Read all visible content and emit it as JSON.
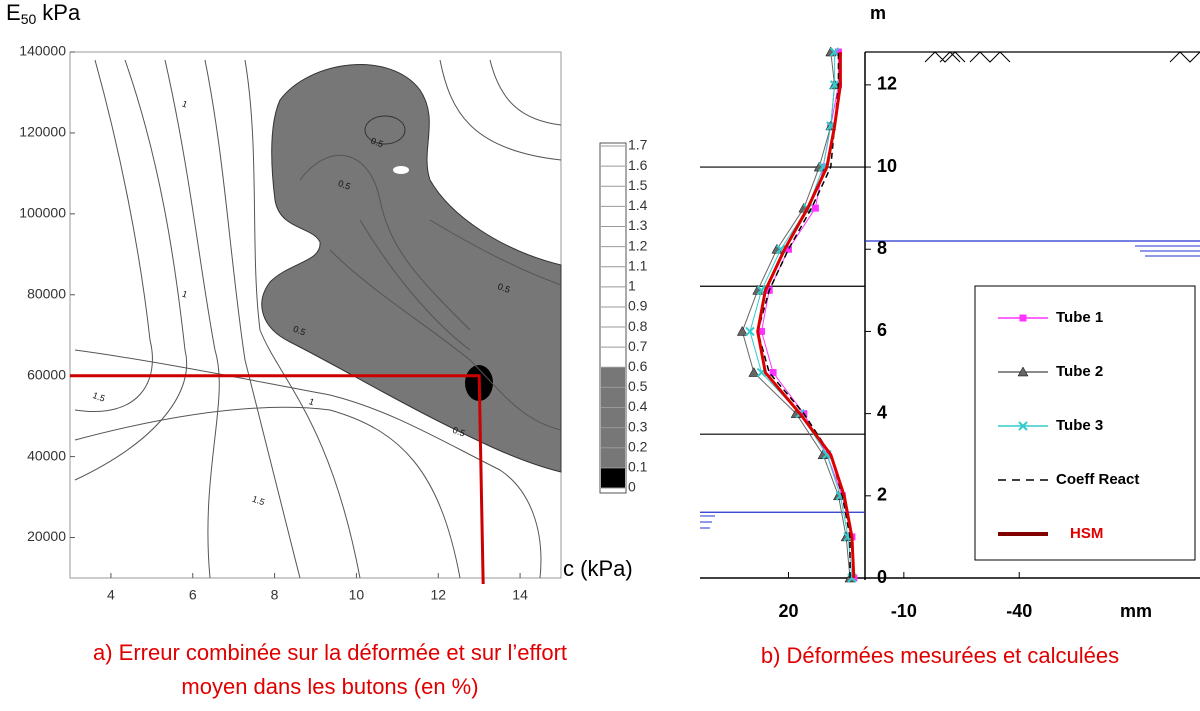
{
  "chart_data": [
    {
      "type": "contour",
      "xlabel": "c (kPa)",
      "ylabel": "E",
      "ylabel_sub": "50",
      "ylabel_unit": "kPa",
      "xlim": [
        3,
        15
      ],
      "xticks": [
        4,
        6,
        8,
        10,
        12,
        14
      ],
      "ylim": [
        10000,
        140000
      ],
      "yticks": [
        20000,
        40000,
        60000,
        80000,
        100000,
        120000,
        140000
      ],
      "highlight": {
        "x": 13,
        "y": 60000,
        "color": "#cc0000"
      },
      "annotations": [
        {
          "text": "1",
          "x": 5.8,
          "y": 127000
        },
        {
          "text": "0.5",
          "x": 10.5,
          "y": 117500
        },
        {
          "text": "0.5",
          "x": 9.7,
          "y": 107000
        },
        {
          "text": "1",
          "x": 5.8,
          "y": 80000
        },
        {
          "text": "0.5",
          "x": 13.6,
          "y": 81500
        },
        {
          "text": "0.5",
          "x": 8.6,
          "y": 71000
        },
        {
          "text": "1.5",
          "x": 3.7,
          "y": 54600
        },
        {
          "text": "1",
          "x": 8.9,
          "y": 53400
        },
        {
          "text": "0.5",
          "x": 12.5,
          "y": 46000
        },
        {
          "text": "1.5",
          "x": 7.6,
          "y": 29000
        }
      ],
      "colorbar": {
        "lim": [
          0,
          1.7
        ],
        "ticks": [
          1.7,
          1.6,
          1.5,
          1.4,
          1.3,
          1.2,
          1.1,
          1,
          0.9,
          0.8,
          0.7,
          0.6,
          0.5,
          0.4,
          0.3,
          0.2,
          0.1,
          0
        ],
        "bands": [
          {
            "from": 0,
            "to": 0.1,
            "color": "#000000"
          },
          {
            "from": 0.1,
            "to": 0.6,
            "color": "#777777"
          },
          {
            "from": 0.6,
            "to": 1.7,
            "color": "#ffffff"
          }
        ]
      },
      "caption": [
        "a) Erreur combinée sur la déformée et sur l’effort",
        "moyen dans les butons (en %)"
      ]
    },
    {
      "type": "line",
      "orientation": "vertical",
      "ylabel": "m",
      "xlabel": "mm",
      "x": [
        0,
        1,
        2,
        3,
        4,
        5,
        6,
        7,
        8,
        9,
        10,
        11,
        12,
        12.8
      ],
      "xlim": [
        0,
        12.8
      ],
      "xticks": [
        0,
        2,
        4,
        6,
        8,
        10,
        12
      ],
      "ylim": [
        43,
        -87
      ],
      "yticks": [
        20,
        -10,
        -40
      ],
      "series": [
        {
          "name": "Tube 1",
          "color": "#ff33ff",
          "marker": "square",
          "values": [
            3,
            3.5,
            6,
            10,
            16,
            24,
            27,
            25,
            20,
            13,
            11,
            9,
            7,
            7
          ]
        },
        {
          "name": "Tube 2",
          "color": "#666666",
          "marker": "triangle",
          "values": [
            4,
            5,
            7,
            11,
            18,
            29,
            32,
            28,
            23,
            16,
            12,
            9,
            8,
            9
          ]
        },
        {
          "name": "Tube 3",
          "color": "#33cccc",
          "marker": "cross",
          "values": [
            3.5,
            4.5,
            6.5,
            10,
            17,
            27,
            30,
            27,
            22,
            15,
            11,
            9,
            8,
            8
          ]
        },
        {
          "name": "Coeff React",
          "color": "#000000",
          "marker": "dashed",
          "values": [
            4,
            4,
            6,
            9,
            16,
            25,
            28,
            25,
            20,
            14,
            9,
            8,
            7,
            7
          ]
        },
        {
          "name": "HSM",
          "color": "#dd0000",
          "marker": "thick",
          "values": [
            3,
            3.5,
            5.5,
            9,
            17,
            26,
            28,
            26,
            21,
            15,
            10,
            8,
            6.5,
            6.5
          ]
        }
      ],
      "reference_lines": [
        {
          "depth": 12.8,
          "color": "#000000",
          "side": "right"
        },
        {
          "depth": 10,
          "color": "#000000",
          "side": "left"
        },
        {
          "depth": 8.2,
          "color": "#2233cc",
          "side": "right"
        },
        {
          "depth": 7.1,
          "color": "#000000",
          "side": "left"
        },
        {
          "depth": 3.5,
          "color": "#000000",
          "side": "left"
        },
        {
          "depth": 1.6,
          "color": "#2233cc",
          "side": "left"
        }
      ],
      "caption": [
        "b) Déformées mesurées et calculées"
      ]
    }
  ]
}
